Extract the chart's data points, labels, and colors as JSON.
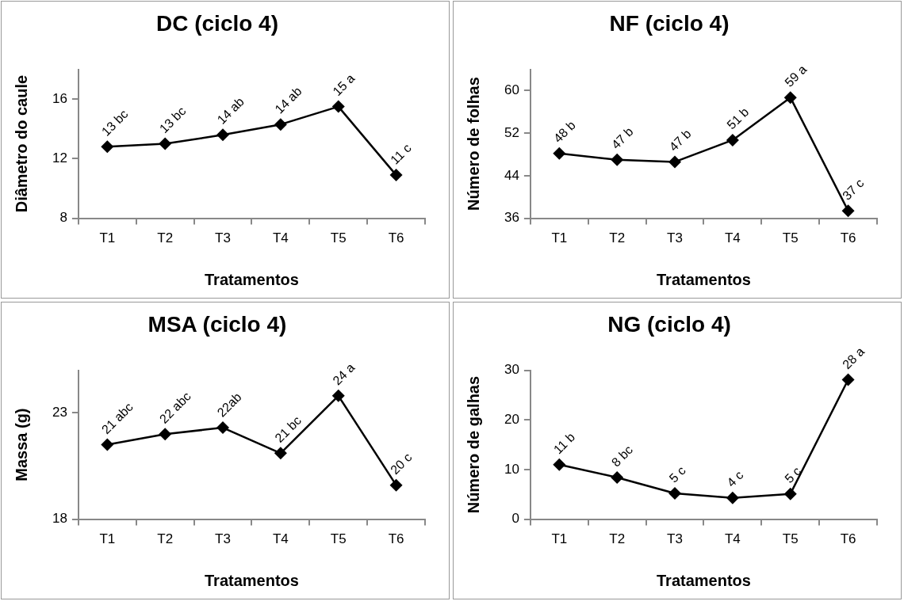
{
  "chart_data": [
    {
      "type": "line",
      "title": "DC (ciclo 4)",
      "xlabel": "Tratamentos",
      "ylabel": "Diâmetro do caule",
      "categories": [
        "T1",
        "T2",
        "T3",
        "T4",
        "T5",
        "T6"
      ],
      "series": [
        {
          "color": "#000000",
          "values": [
            12.8,
            13.0,
            13.6,
            14.3,
            15.5,
            10.9
          ],
          "value_labels": [
            "13 bc",
            "13 bc",
            "14 ab",
            "14 ab",
            "15 a",
            "11 c"
          ]
        }
      ],
      "ylim": [
        8,
        18
      ],
      "yticks": [
        8,
        12,
        16
      ],
      "grid": false,
      "legend": false,
      "marker": "diamond",
      "line_style": "solid"
    },
    {
      "type": "line",
      "title": "NF (ciclo 4)",
      "xlabel": "Tratamentos",
      "ylabel": "Número de folhas",
      "categories": [
        "T1",
        "T2",
        "T3",
        "T4",
        "T5",
        "T6"
      ],
      "series": [
        {
          "color": "#000000",
          "values": [
            48.2,
            47.0,
            46.6,
            50.7,
            58.7,
            37.4
          ],
          "value_labels": [
            "48 b",
            "47 b",
            "47 b",
            "51 b",
            "59 a",
            "37 c"
          ]
        }
      ],
      "ylim": [
        36,
        64
      ],
      "yticks": [
        36,
        44,
        52,
        60
      ],
      "grid": false,
      "legend": false,
      "marker": "diamond",
      "line_style": "solid"
    },
    {
      "type": "line",
      "title": "MSA (ciclo 4)",
      "xlabel": "Tratamentos",
      "ylabel": "Massa (g)",
      "categories": [
        "T1",
        "T2",
        "T3",
        "T4",
        "T5",
        "T6"
      ],
      "series": [
        {
          "color": "#000000",
          "values": [
            21.5,
            22.0,
            22.3,
            21.1,
            23.8,
            19.6
          ],
          "value_labels": [
            "21 abc",
            "22 abc",
            "22ab",
            "21 bc",
            "24 a",
            "20 c"
          ]
        }
      ],
      "ylim": [
        18,
        25
      ],
      "yticks": [
        18,
        23
      ],
      "grid": false,
      "legend": false,
      "marker": "diamond",
      "line_style": "solid"
    },
    {
      "type": "line",
      "title": "NG (ciclo 4)",
      "xlabel": "Tratamentos",
      "ylabel": "Número de galhas",
      "categories": [
        "T1",
        "T2",
        "T3",
        "T4",
        "T5",
        "T6"
      ],
      "series": [
        {
          "color": "#000000",
          "values": [
            11.0,
            8.4,
            5.2,
            4.3,
            5.1,
            28.1
          ],
          "value_labels": [
            "11 b",
            "8 bc",
            "5 c",
            "4 c",
            "5 c",
            "28 a"
          ]
        }
      ],
      "ylim": [
        0,
        30
      ],
      "yticks": [
        0,
        10,
        20,
        30
      ],
      "grid": false,
      "legend": false,
      "marker": "diamond",
      "line_style": "solid"
    }
  ]
}
